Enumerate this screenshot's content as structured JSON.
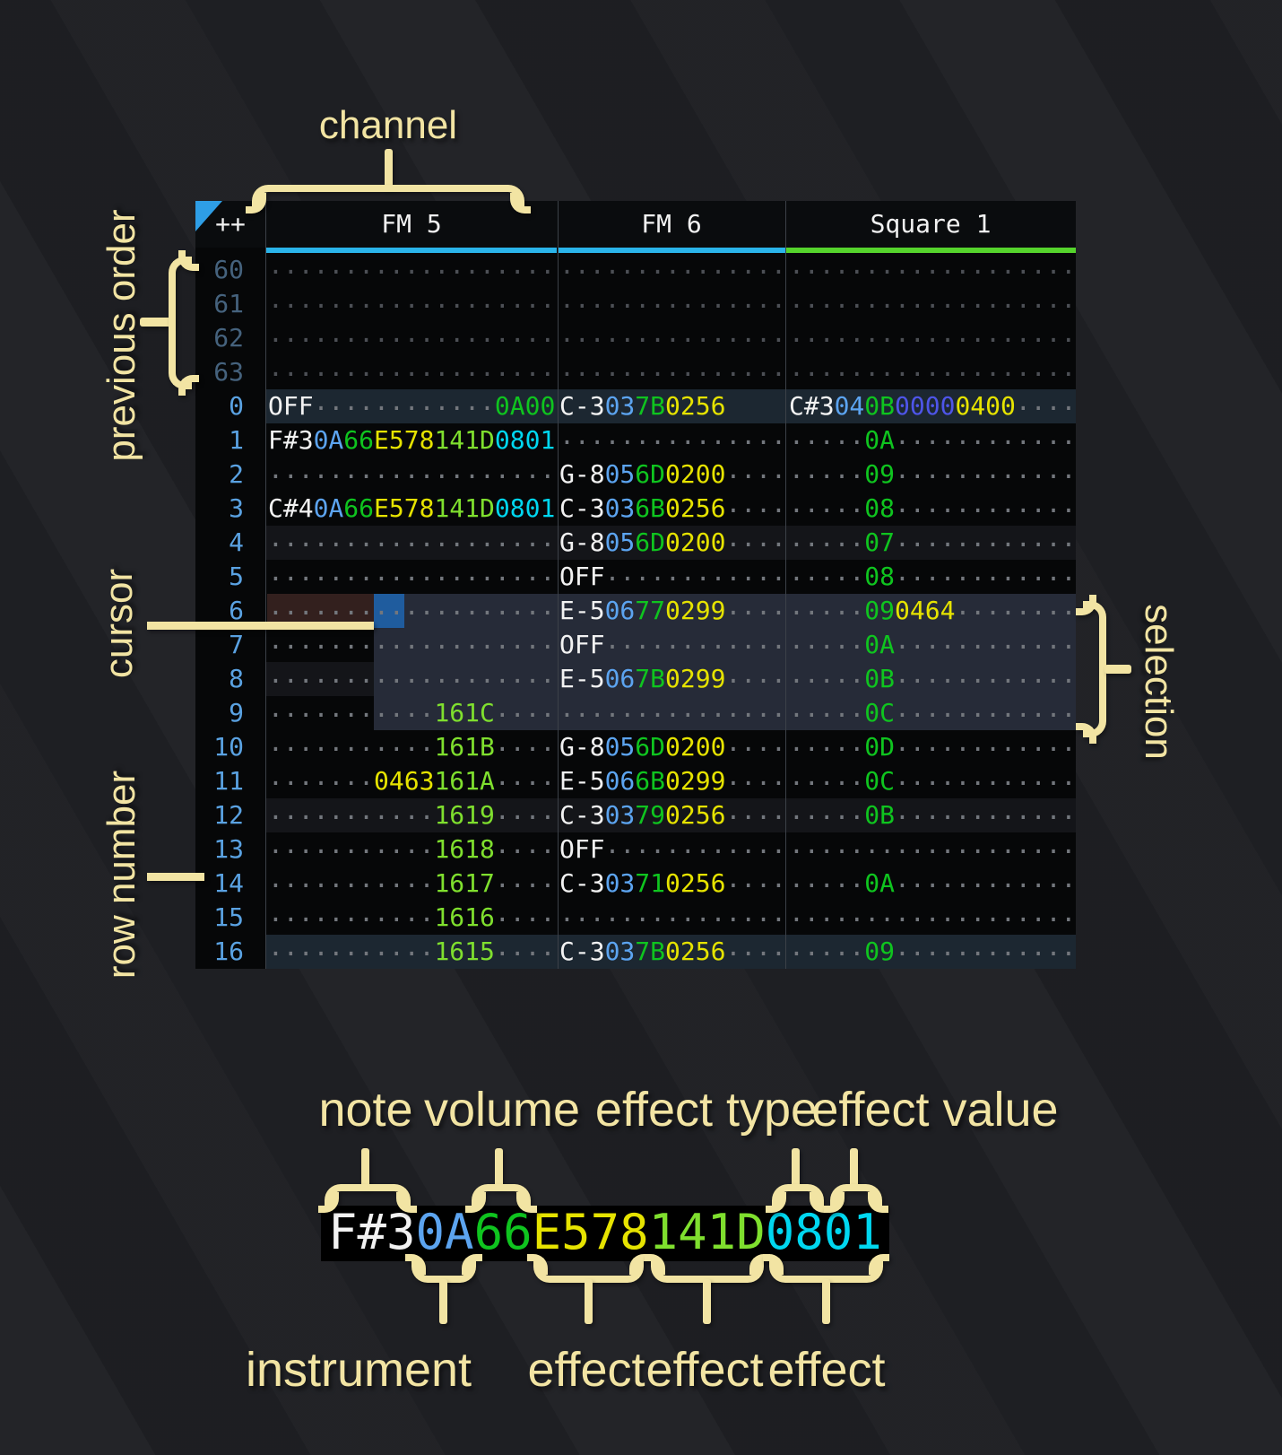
{
  "colors": {
    "table_bg": "#060708",
    "header_bg": "#0A0C0E",
    "grid_line": "#3C4148",
    "accent_cyan": "#2AB4EA",
    "accent_green": "#55D42C",
    "order_triangle": "#2E9EE6",
    "cursor_blue": "#1F5C9E",
    "selection_bg": "#262B38",
    "cursor_row_tint": "#33201E",
    "row_major_bg": "#1C2731",
    "row_minor_bg": "#141519",
    "annotation_cream": "#F2E4A3",
    "note_white": "#F2F2F2",
    "instrument_blue": "#5CA4F0",
    "volume_green": "#0FC41F",
    "fx_yellow": "#E6E300",
    "fx_lime": "#7FDF2E",
    "fx_cyan": "#00D7F0",
    "fx_indigo": "#4E55E8",
    "dots_grey": "#73777D",
    "dots_dim": "#4C4F55",
    "rownum_blue": "#5AA2E2",
    "rownum_dim": "#45627D"
  },
  "annotations": {
    "channel": "channel",
    "previous_order": "previous order",
    "cursor": "cursor",
    "row_number": "row number",
    "selection": "selection"
  },
  "header": {
    "order_label": "++",
    "channels": [
      {
        "name": "FM 5",
        "underline": "accent_cyan"
      },
      {
        "name": "FM 6",
        "underline": "accent_cyan"
      },
      {
        "name": "Square 1",
        "underline": "accent_green"
      }
    ]
  },
  "legend": {
    "note_label": "note",
    "volume_label": "volume",
    "effect_type_label": "effect type",
    "effect_value_label": "effect value",
    "instrument_label": "instrument",
    "effect_label_1": "effect",
    "effect_label_2": "effect",
    "effect_label_3": "effect",
    "example": {
      "note": "F#3",
      "instrument": "0A",
      "volume": "66",
      "effect1": "E578",
      "effect2": "141D",
      "effect3": "0801"
    }
  },
  "rows": [
    {
      "n": "60",
      "dim": true,
      "hl": "",
      "fm5": [
        [
          "...................",
          "d"
        ]
      ],
      "fm6": [
        [
          "...............",
          "d"
        ]
      ],
      "sq1": [
        [
          "...................",
          "d"
        ]
      ]
    },
    {
      "n": "61",
      "dim": true,
      "hl": "",
      "fm5": [
        [
          "...................",
          "d"
        ]
      ],
      "fm6": [
        [
          "...............",
          "d"
        ]
      ],
      "sq1": [
        [
          "...................",
          "d"
        ]
      ]
    },
    {
      "n": "62",
      "dim": true,
      "hl": "",
      "fm5": [
        [
          "...................",
          "d"
        ]
      ],
      "fm6": [
        [
          "...............",
          "d"
        ]
      ],
      "sq1": [
        [
          "...................",
          "d"
        ]
      ]
    },
    {
      "n": "63",
      "dim": true,
      "hl": "",
      "fm5": [
        [
          "...................",
          "d"
        ]
      ],
      "fm6": [
        [
          "...............",
          "d"
        ]
      ],
      "sq1": [
        [
          "...................",
          "d"
        ]
      ]
    },
    {
      "n": "0",
      "hl": "maj",
      "fm5": [
        [
          "OFF",
          "n"
        ],
        [
          "............",
          "d"
        ],
        [
          "0A00",
          "v"
        ]
      ],
      "fm6": [
        [
          "C-3",
          "n"
        ],
        [
          "03",
          "i"
        ],
        [
          "7B",
          "v"
        ],
        [
          "0256",
          "y"
        ]
      ],
      "sq1": [
        [
          "C#3",
          "n"
        ],
        [
          "04",
          "i"
        ],
        [
          "0B",
          "v"
        ],
        [
          "0000",
          "p"
        ],
        [
          "0400",
          "y"
        ],
        [
          "....",
          "d"
        ]
      ]
    },
    {
      "n": "1",
      "hl": "",
      "fm5": [
        [
          "F#3",
          "n"
        ],
        [
          "0A",
          "i"
        ],
        [
          "66",
          "v"
        ],
        [
          "E578",
          "y"
        ],
        [
          "141D",
          "l"
        ],
        [
          "0801",
          "c"
        ]
      ],
      "fm6": [
        [
          "...............",
          "d"
        ]
      ],
      "sq1": [
        [
          ".....",
          "d"
        ],
        [
          "0A",
          "v"
        ],
        [
          "............",
          "d"
        ]
      ]
    },
    {
      "n": "2",
      "hl": "",
      "fm5": [
        [
          "...................",
          "d"
        ]
      ],
      "fm6": [
        [
          "G-8",
          "n"
        ],
        [
          "05",
          "i"
        ],
        [
          "6D",
          "v"
        ],
        [
          "0200",
          "y"
        ],
        [
          "....",
          "d"
        ]
      ],
      "sq1": [
        [
          ".....",
          "d"
        ],
        [
          "09",
          "v"
        ],
        [
          "............",
          "d"
        ]
      ]
    },
    {
      "n": "3",
      "hl": "",
      "fm5": [
        [
          "C#4",
          "n"
        ],
        [
          "0A",
          "i"
        ],
        [
          "66",
          "v"
        ],
        [
          "E578",
          "y"
        ],
        [
          "141D",
          "l"
        ],
        [
          "0801",
          "c"
        ]
      ],
      "fm6": [
        [
          "C-3",
          "n"
        ],
        [
          "03",
          "i"
        ],
        [
          "6B",
          "v"
        ],
        [
          "0256",
          "y"
        ],
        [
          "....",
          "d"
        ]
      ],
      "sq1": [
        [
          ".....",
          "d"
        ],
        [
          "08",
          "v"
        ],
        [
          "............",
          "d"
        ]
      ]
    },
    {
      "n": "4",
      "hl": "min",
      "fm5": [
        [
          "...................",
          "d"
        ]
      ],
      "fm6": [
        [
          "G-8",
          "n"
        ],
        [
          "05",
          "i"
        ],
        [
          "6D",
          "v"
        ],
        [
          "0200",
          "y"
        ],
        [
          "....",
          "d"
        ]
      ],
      "sq1": [
        [
          ".....",
          "d"
        ],
        [
          "07",
          "v"
        ],
        [
          "............",
          "d"
        ]
      ]
    },
    {
      "n": "5",
      "hl": "",
      "fm5": [
        [
          "...................",
          "d"
        ]
      ],
      "fm6": [
        [
          "OFF",
          "n"
        ],
        [
          "............",
          "d"
        ]
      ],
      "sq1": [
        [
          ".....",
          "d"
        ],
        [
          "08",
          "v"
        ],
        [
          "............",
          "d"
        ]
      ]
    },
    {
      "n": "6",
      "hl": "",
      "fm5": [
        [
          "...................",
          "d"
        ]
      ],
      "fm6": [
        [
          "E-5",
          "n"
        ],
        [
          "06",
          "i"
        ],
        [
          "77",
          "v"
        ],
        [
          "0299",
          "y"
        ],
        [
          "....",
          "d"
        ]
      ],
      "sq1": [
        [
          ".....",
          "d"
        ],
        [
          "09",
          "v"
        ],
        [
          "0464",
          "y"
        ],
        [
          "........",
          "d"
        ]
      ]
    },
    {
      "n": "7",
      "hl": "",
      "fm5": [
        [
          "...................",
          "d"
        ]
      ],
      "fm6": [
        [
          "OFF",
          "n"
        ],
        [
          "............",
          "d"
        ]
      ],
      "sq1": [
        [
          ".....",
          "d"
        ],
        [
          "0A",
          "v"
        ],
        [
          "............",
          "d"
        ]
      ]
    },
    {
      "n": "8",
      "hl": "min",
      "fm5": [
        [
          "...................",
          "d"
        ]
      ],
      "fm6": [
        [
          "E-5",
          "n"
        ],
        [
          "06",
          "i"
        ],
        [
          "7B",
          "v"
        ],
        [
          "0299",
          "y"
        ],
        [
          "....",
          "d"
        ]
      ],
      "sq1": [
        [
          ".....",
          "d"
        ],
        [
          "0B",
          "v"
        ],
        [
          "............",
          "d"
        ]
      ]
    },
    {
      "n": "9",
      "hl": "",
      "fm5": [
        [
          "...........",
          "d"
        ],
        [
          "161C",
          "l"
        ],
        [
          "....",
          "d"
        ]
      ],
      "fm6": [
        [
          "...............",
          "d"
        ]
      ],
      "sq1": [
        [
          ".....",
          "d"
        ],
        [
          "0C",
          "v"
        ],
        [
          "............",
          "d"
        ]
      ]
    },
    {
      "n": "10",
      "hl": "",
      "fm5": [
        [
          "...........",
          "d"
        ],
        [
          "161B",
          "l"
        ],
        [
          "....",
          "d"
        ]
      ],
      "fm6": [
        [
          "G-8",
          "n"
        ],
        [
          "05",
          "i"
        ],
        [
          "6D",
          "v"
        ],
        [
          "0200",
          "y"
        ],
        [
          "....",
          "d"
        ]
      ],
      "sq1": [
        [
          ".....",
          "d"
        ],
        [
          "0D",
          "v"
        ],
        [
          "............",
          "d"
        ]
      ]
    },
    {
      "n": "11",
      "hl": "",
      "fm5": [
        [
          ".......",
          "d"
        ],
        [
          "0463",
          "y"
        ],
        [
          "161A",
          "l"
        ],
        [
          "....",
          "d"
        ]
      ],
      "fm6": [
        [
          "E-5",
          "n"
        ],
        [
          "06",
          "i"
        ],
        [
          "6B",
          "v"
        ],
        [
          "0299",
          "y"
        ],
        [
          "....",
          "d"
        ]
      ],
      "sq1": [
        [
          ".....",
          "d"
        ],
        [
          "0C",
          "v"
        ],
        [
          "............",
          "d"
        ]
      ]
    },
    {
      "n": "12",
      "hl": "min",
      "fm5": [
        [
          "...........",
          "d"
        ],
        [
          "1619",
          "l"
        ],
        [
          "....",
          "d"
        ]
      ],
      "fm6": [
        [
          "C-3",
          "n"
        ],
        [
          "03",
          "i"
        ],
        [
          "79",
          "v"
        ],
        [
          "0256",
          "y"
        ],
        [
          "....",
          "d"
        ]
      ],
      "sq1": [
        [
          ".....",
          "d"
        ],
        [
          "0B",
          "v"
        ],
        [
          "............",
          "d"
        ]
      ]
    },
    {
      "n": "13",
      "hl": "",
      "fm5": [
        [
          "...........",
          "d"
        ],
        [
          "1618",
          "l"
        ],
        [
          "....",
          "d"
        ]
      ],
      "fm6": [
        [
          "OFF",
          "n"
        ],
        [
          "............",
          "d"
        ]
      ],
      "sq1": [
        [
          "...................",
          "d"
        ]
      ]
    },
    {
      "n": "14",
      "hl": "",
      "fm5": [
        [
          "...........",
          "d"
        ],
        [
          "1617",
          "l"
        ],
        [
          "....",
          "d"
        ]
      ],
      "fm6": [
        [
          "C-3",
          "n"
        ],
        [
          "03",
          "i"
        ],
        [
          "71",
          "v"
        ],
        [
          "0256",
          "y"
        ],
        [
          "....",
          "d"
        ]
      ],
      "sq1": [
        [
          ".....",
          "d"
        ],
        [
          "0A",
          "v"
        ],
        [
          "............",
          "d"
        ]
      ]
    },
    {
      "n": "15",
      "hl": "",
      "fm5": [
        [
          "...........",
          "d"
        ],
        [
          "1616",
          "l"
        ],
        [
          "....",
          "d"
        ]
      ],
      "fm6": [
        [
          "...............",
          "d"
        ]
      ],
      "sq1": [
        [
          "...................",
          "d"
        ]
      ]
    },
    {
      "n": "16",
      "hl": "maj",
      "fm5": [
        [
          "...........",
          "d"
        ],
        [
          "1615",
          "l"
        ],
        [
          "....",
          "d"
        ]
      ],
      "fm6": [
        [
          "C-3",
          "n"
        ],
        [
          "03",
          "i"
        ],
        [
          "7B",
          "v"
        ],
        [
          "0256",
          "y"
        ],
        [
          "....",
          "d"
        ]
      ],
      "sq1": [
        [
          ".....",
          "d"
        ],
        [
          "09",
          "v"
        ],
        [
          "............",
          "d"
        ]
      ]
    }
  ]
}
